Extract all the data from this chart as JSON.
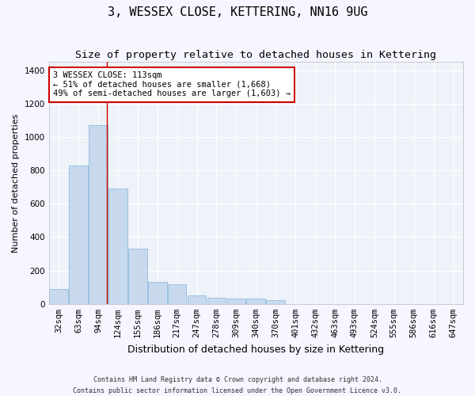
{
  "title": "3, WESSEX CLOSE, KETTERING, NN16 9UG",
  "subtitle": "Size of property relative to detached houses in Kettering",
  "xlabel": "Distribution of detached houses by size in Kettering",
  "ylabel": "Number of detached properties",
  "categories": [
    "32sqm",
    "63sqm",
    "94sqm",
    "124sqm",
    "155sqm",
    "186sqm",
    "217sqm",
    "247sqm",
    "278sqm",
    "309sqm",
    "340sqm",
    "370sqm",
    "401sqm",
    "432sqm",
    "463sqm",
    "493sqm",
    "524sqm",
    "555sqm",
    "586sqm",
    "616sqm",
    "647sqm"
  ],
  "values": [
    90,
    830,
    1070,
    690,
    330,
    130,
    120,
    50,
    35,
    30,
    30,
    25,
    0,
    0,
    0,
    0,
    0,
    0,
    0,
    0,
    0
  ],
  "bar_color": "#c8d9ee",
  "bar_edge_color": "#7fb3d9",
  "red_line_x": 2.45,
  "annotation_title": "3 WESSEX CLOSE: 113sqm",
  "annotation_line1": "← 51% of detached houses are smaller (1,668)",
  "annotation_line2": "49% of semi-detached houses are larger (1,603) →",
  "annotation_box_color": "#ffffff",
  "annotation_box_edge": "#cc0000",
  "ylim": [
    0,
    1450
  ],
  "yticks": [
    0,
    200,
    400,
    600,
    800,
    1000,
    1200,
    1400
  ],
  "footer_line1": "Contains HM Land Registry data © Crown copyright and database right 2024.",
  "footer_line2": "Contains public sector information licensed under the Open Government Licence v3.0.",
  "bg_color": "#eef2f9",
  "grid_color": "#ffffff",
  "fig_bg_color": "#f5f6ff",
  "title_fontsize": 11,
  "subtitle_fontsize": 9.5,
  "tick_fontsize": 7.5,
  "ylabel_fontsize": 8,
  "xlabel_fontsize": 9,
  "annotation_fontsize": 7.5,
  "footer_fontsize": 6
}
